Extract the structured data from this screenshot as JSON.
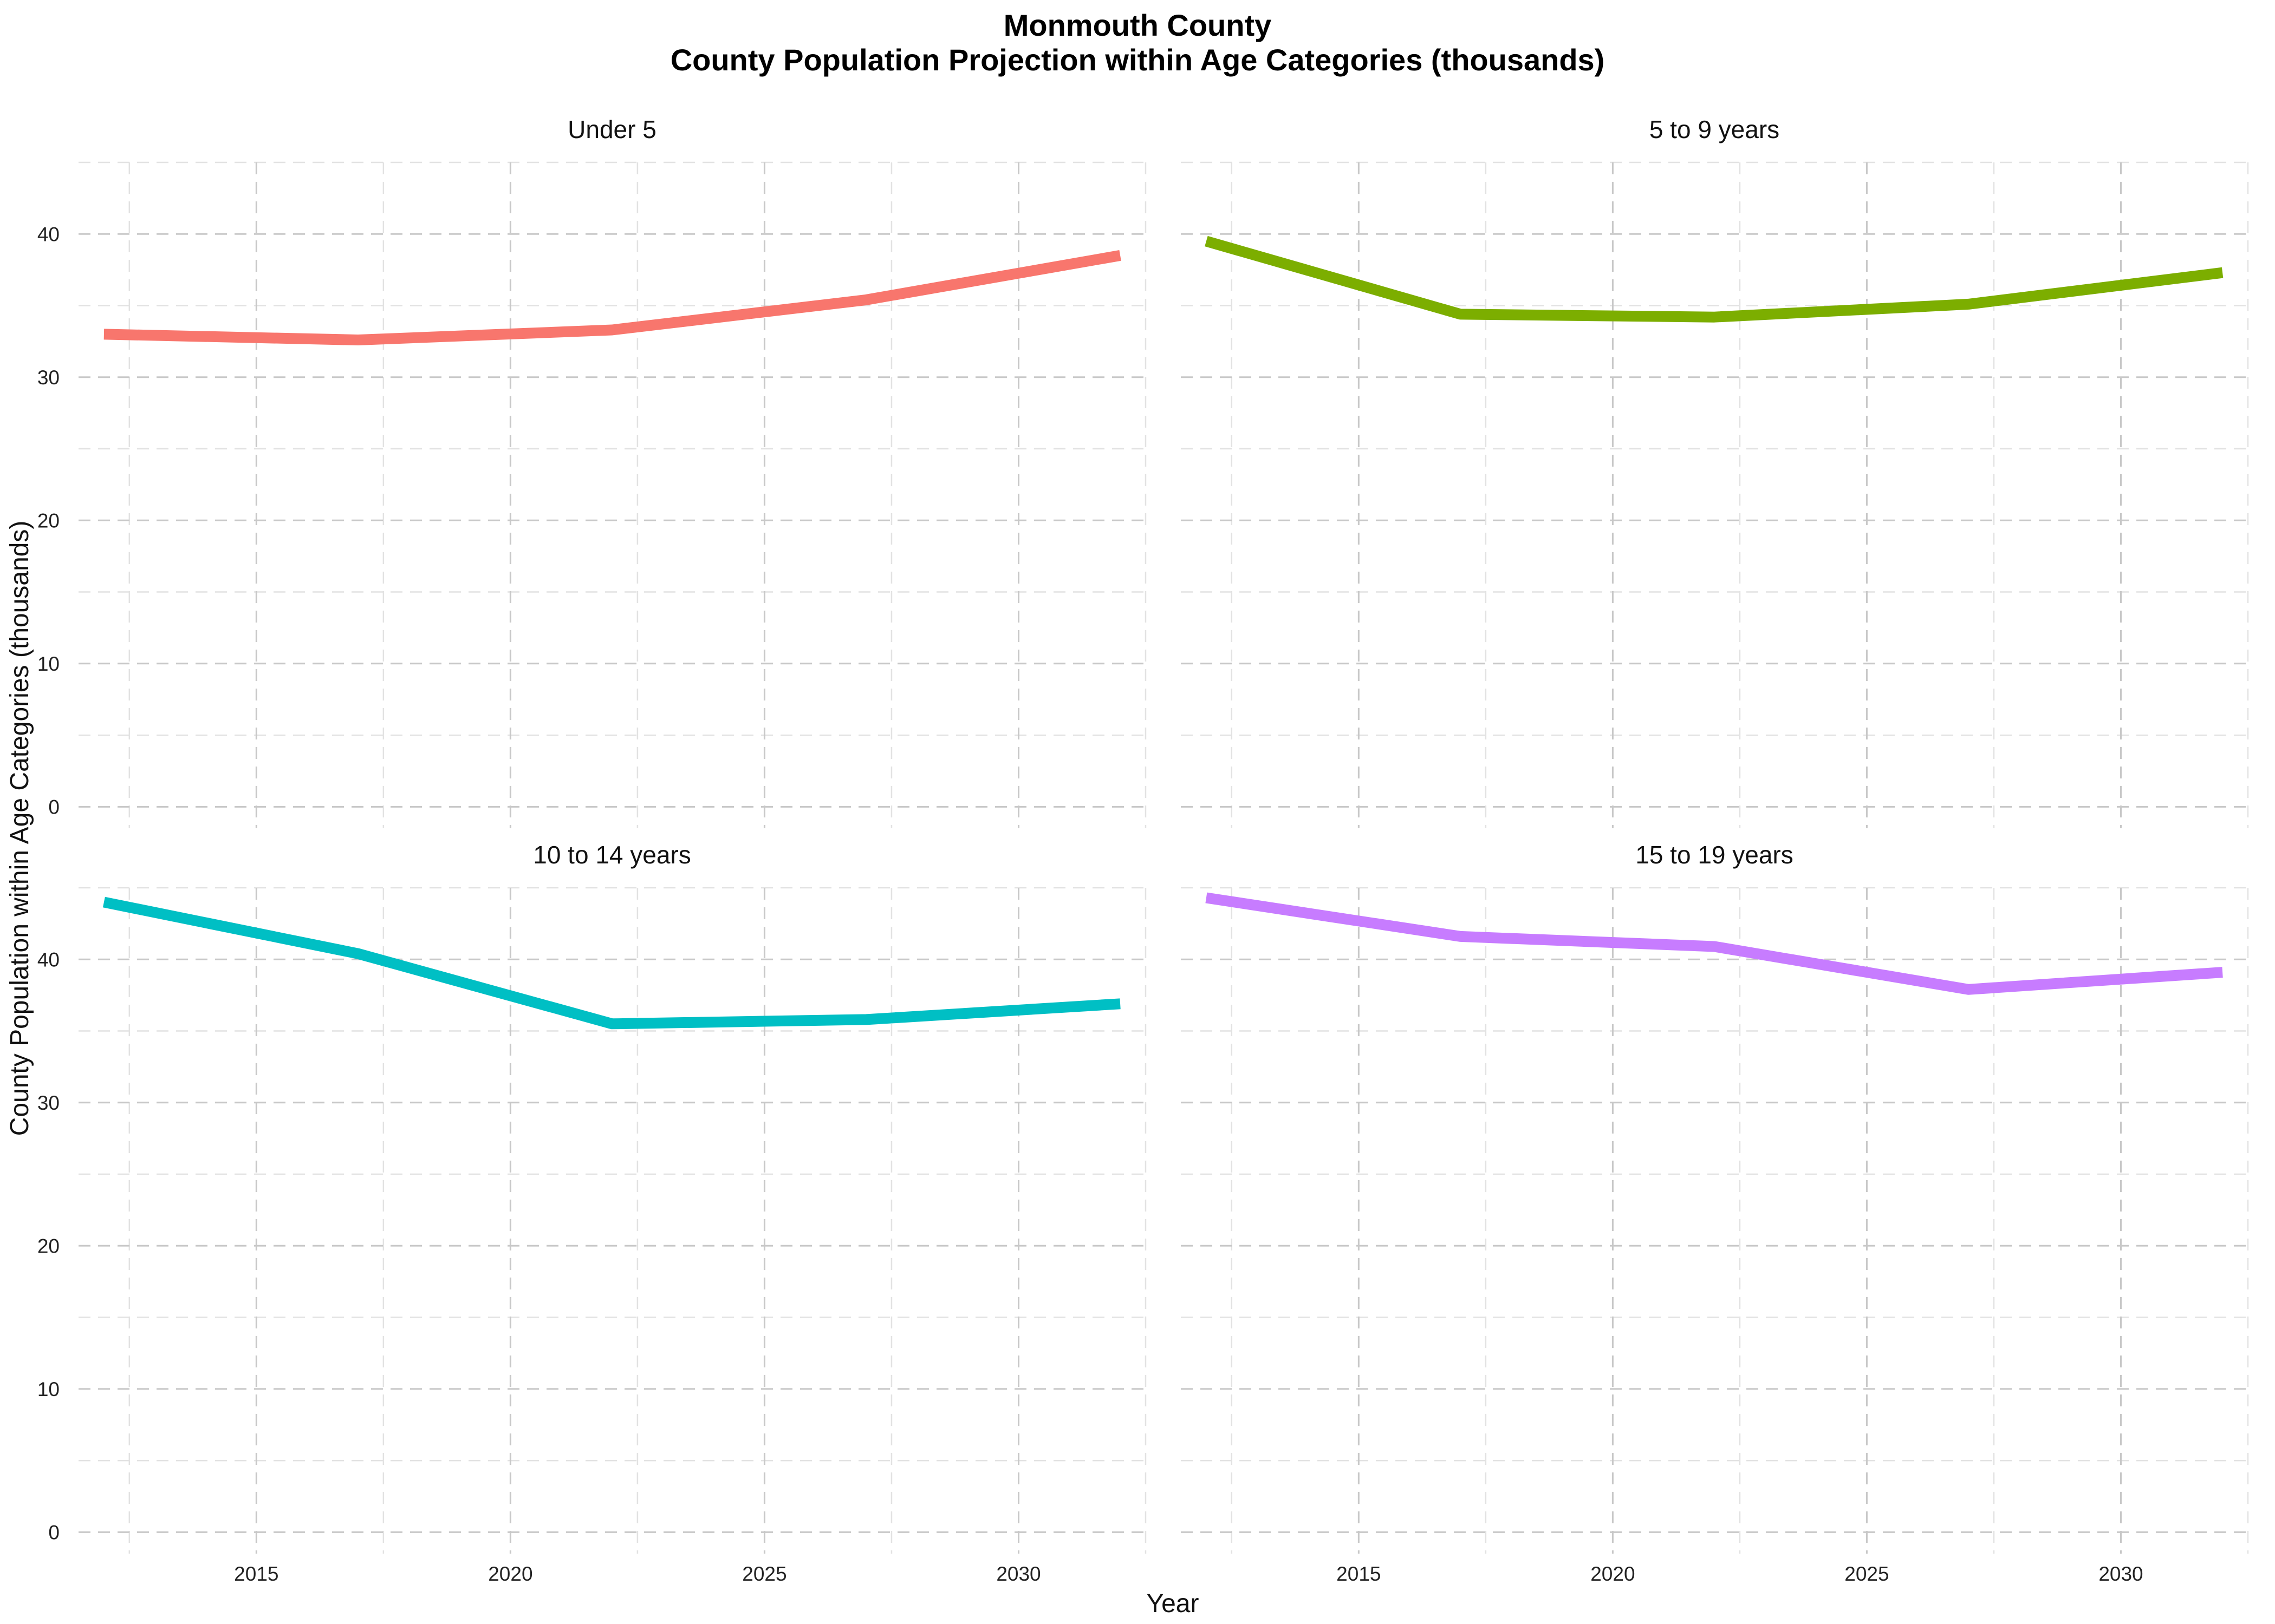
{
  "chart_data": {
    "type": "line",
    "title": "Monmouth County",
    "subtitle": "County Population Projection within Age Categories (thousands)",
    "xlabel": "Year",
    "ylabel": "County Population within Age Categories (thousands)",
    "xlim": [
      2011.5,
      2032.5
    ],
    "ylim": [
      -1.5,
      45
    ],
    "x_ticks": [
      2015,
      2020,
      2025,
      2030
    ],
    "y_ticks": [
      0,
      10,
      20,
      30,
      40
    ],
    "grid": true,
    "legend": "none",
    "facets": [
      {
        "name": "Under 5",
        "color": "#F8766D",
        "x": [
          2012,
          2017,
          2022,
          2027,
          2032
        ],
        "y": [
          33.0,
          32.6,
          33.3,
          35.4,
          38.5
        ]
      },
      {
        "name": "5 to 9 years",
        "color": "#7CAE00",
        "x": [
          2012,
          2017,
          2022,
          2027,
          2032
        ],
        "y": [
          39.5,
          34.4,
          34.2,
          35.1,
          37.3
        ]
      },
      {
        "name": "10 to 14 years",
        "color": "#00BFC4",
        "x": [
          2012,
          2017,
          2022,
          2027,
          2032
        ],
        "y": [
          44.0,
          40.4,
          35.5,
          35.8,
          36.9
        ]
      },
      {
        "name": "15 to 19 years",
        "color": "#C77CFF",
        "x": [
          2012,
          2017,
          2022,
          2027,
          2032
        ],
        "y": [
          44.3,
          41.6,
          40.9,
          37.9,
          39.1
        ]
      }
    ]
  }
}
